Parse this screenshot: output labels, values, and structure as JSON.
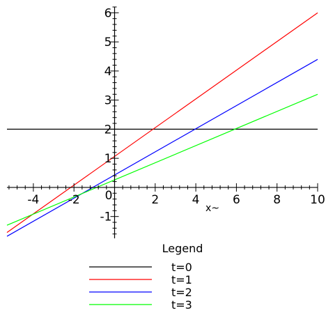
{
  "chart_data": {
    "type": "line",
    "title": "",
    "xlabel": "x~",
    "ylabel": "",
    "xlim": [
      -5.3,
      10
    ],
    "ylim": [
      -1.75,
      6.2
    ],
    "grid": false,
    "x_ticks": [
      -4,
      -2,
      2,
      4,
      6,
      8,
      10
    ],
    "y_ticks": [
      -1,
      1,
      2,
      3,
      4,
      5,
      6
    ],
    "x_tick_labels": [
      "-4",
      "-2",
      "2",
      "4",
      "6",
      "8",
      "10"
    ],
    "y_tick_labels": [
      "-1",
      "1",
      "2",
      "3",
      "4",
      "5",
      "6"
    ],
    "origin_label": "0",
    "legend": {
      "title": "Legend",
      "placement": "bottom-center",
      "entries": [
        "t=0",
        "t=1",
        "t=2",
        "t=3"
      ]
    },
    "series": [
      {
        "name": "t=0",
        "color": "#000000",
        "x": [
          -5.3,
          10
        ],
        "y": [
          2,
          2
        ]
      },
      {
        "name": "t=1",
        "color": "#ff0000",
        "x": [
          -5.3,
          10
        ],
        "y": [
          -1.55,
          6
        ]
      },
      {
        "name": "t=2",
        "color": "#0000ff",
        "x": [
          -5.3,
          10
        ],
        "y": [
          -1.68,
          4.4
        ]
      },
      {
        "name": "t=3",
        "color": "#00ff00",
        "x": [
          -5.3,
          10
        ],
        "y": [
          -1.3,
          3.2
        ]
      }
    ]
  }
}
